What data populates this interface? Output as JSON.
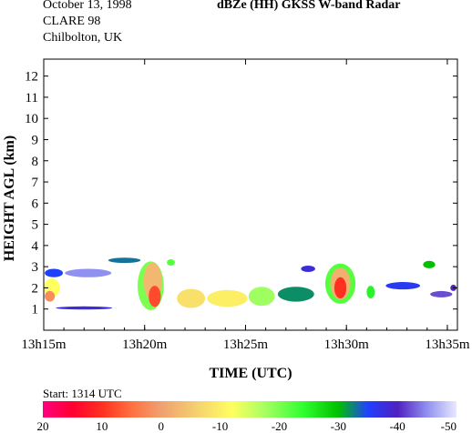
{
  "header": {
    "date": "October 13, 1998",
    "campaign": "CLARE 98",
    "site": "Chilbolton, UK",
    "title": "dBZe (HH)   GKSS  W-band Radar"
  },
  "chart_data": {
    "type": "heatmap",
    "title": "dBZe (HH)   GKSS  W-band Radar",
    "xlabel": "TIME (UTC)",
    "ylabel": "HEIGHT AGL (km)",
    "xlim_minutes": [
      0,
      20.5
    ],
    "ylim_km": [
      0,
      12.8
    ],
    "x_ticks": [
      {
        "minute": 0,
        "label": "13h15m"
      },
      {
        "minute": 5,
        "label": "13h20m"
      },
      {
        "minute": 10,
        "label": "13h25m"
      },
      {
        "minute": 15,
        "label": "13h30m"
      },
      {
        "minute": 20,
        "label": "13h35m"
      }
    ],
    "y_ticks": [
      {
        "value": 1,
        "label": "1"
      },
      {
        "value": 2,
        "label": "2"
      },
      {
        "value": 3,
        "label": "3"
      },
      {
        "value": 4,
        "label": "4"
      },
      {
        "value": 5,
        "label": "5"
      },
      {
        "value": 6,
        "label": "6"
      },
      {
        "value": 7,
        "label": "7"
      },
      {
        "value": 8,
        "label": "8"
      },
      {
        "value": 9,
        "label": "9"
      },
      {
        "value": 10,
        "label": "10"
      },
      {
        "value": 11,
        "label": "11"
      },
      {
        "value": 12,
        "label": "12"
      }
    ],
    "start_text": "Start: 1314 UTC",
    "colorbar": {
      "min": -50,
      "max": 20,
      "ticks": [
        {
          "value": 20,
          "label": "20"
        },
        {
          "value": 10,
          "label": "10"
        },
        {
          "value": 0,
          "label": "0"
        },
        {
          "value": -10,
          "label": "-10"
        },
        {
          "value": -20,
          "label": "-20"
        },
        {
          "value": -30,
          "label": "-30"
        },
        {
          "value": -40,
          "label": "-40"
        },
        {
          "value": -50,
          "label": "-50"
        }
      ],
      "stops": [
        {
          "value": 20,
          "color": "#ff0080"
        },
        {
          "value": 15,
          "color": "#ff0030"
        },
        {
          "value": 10,
          "color": "#ff3020"
        },
        {
          "value": 5,
          "color": "#ff7040"
        },
        {
          "value": 0,
          "color": "#f0a070"
        },
        {
          "value": -6,
          "color": "#f5d070"
        },
        {
          "value": -12,
          "color": "#ffff60"
        },
        {
          "value": -18,
          "color": "#a0ff60"
        },
        {
          "value": -24,
          "color": "#30ff30"
        },
        {
          "value": -30,
          "color": "#00c000"
        },
        {
          "value": -35,
          "color": "#2040ff"
        },
        {
          "value": -40,
          "color": "#5020c0"
        },
        {
          "value": -45,
          "color": "#9090f0"
        },
        {
          "value": -50,
          "color": "#e8e8ff"
        }
      ]
    },
    "echo_cells": [
      {
        "t": 0.4,
        "h": 2.0,
        "dt": 0.8,
        "dh": 0.9,
        "dbz": -12
      },
      {
        "t": 0.3,
        "h": 1.6,
        "dt": 0.5,
        "dh": 0.5,
        "dbz": 2
      },
      {
        "t": 0.5,
        "h": 2.7,
        "dt": 0.9,
        "dh": 0.4,
        "dbz": -35
      },
      {
        "t": 2.0,
        "h": 1.05,
        "dt": 2.8,
        "dh": 0.15,
        "dbz": -38
      },
      {
        "t": 2.2,
        "h": 2.7,
        "dt": 2.3,
        "dh": 0.4,
        "dbz": -45
      },
      {
        "t": 4.0,
        "h": 3.3,
        "dt": 1.6,
        "dh": 0.25,
        "dbz": -33
      },
      {
        "t": 5.3,
        "h": 2.1,
        "dt": 1.3,
        "dh": 2.3,
        "dbz": -20
      },
      {
        "t": 5.4,
        "h": 2.3,
        "dt": 0.9,
        "dh": 1.8,
        "dbz": -3
      },
      {
        "t": 5.5,
        "h": 1.6,
        "dt": 0.6,
        "dh": 1.0,
        "dbz": 8
      },
      {
        "t": 6.3,
        "h": 3.2,
        "dt": 0.4,
        "dh": 0.3,
        "dbz": -22
      },
      {
        "t": 7.3,
        "h": 1.5,
        "dt": 1.4,
        "dh": 0.9,
        "dbz": -8
      },
      {
        "t": 9.1,
        "h": 1.5,
        "dt": 2.0,
        "dh": 0.8,
        "dbz": -10
      },
      {
        "t": 10.8,
        "h": 1.6,
        "dt": 1.3,
        "dh": 0.9,
        "dbz": -18
      },
      {
        "t": 12.5,
        "h": 1.7,
        "dt": 1.8,
        "dh": 0.7,
        "dbz": -32
      },
      {
        "t": 13.1,
        "h": 2.9,
        "dt": 0.7,
        "dh": 0.3,
        "dbz": -38
      },
      {
        "t": 14.7,
        "h": 2.2,
        "dt": 1.5,
        "dh": 1.9,
        "dbz": -22
      },
      {
        "t": 14.7,
        "h": 2.2,
        "dt": 1.0,
        "dh": 1.5,
        "dbz": -2
      },
      {
        "t": 14.7,
        "h": 2.0,
        "dt": 0.6,
        "dh": 1.0,
        "dbz": 10
      },
      {
        "t": 16.2,
        "h": 1.8,
        "dt": 0.4,
        "dh": 0.6,
        "dbz": -25
      },
      {
        "t": 17.8,
        "h": 2.1,
        "dt": 1.7,
        "dh": 0.35,
        "dbz": -36
      },
      {
        "t": 19.1,
        "h": 3.1,
        "dt": 0.6,
        "dh": 0.35,
        "dbz": -30
      },
      {
        "t": 19.7,
        "h": 1.7,
        "dt": 1.1,
        "dh": 0.3,
        "dbz": -42
      },
      {
        "t": 20.3,
        "h": 2.0,
        "dt": 0.3,
        "dh": 0.3,
        "dbz": -40
      }
    ]
  }
}
